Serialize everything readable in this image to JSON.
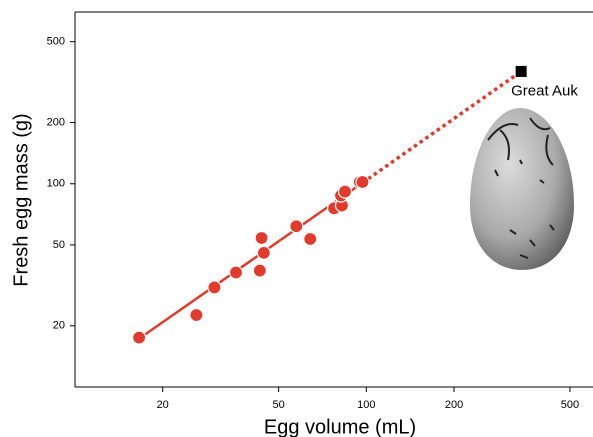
{
  "chart_data": {
    "type": "scatter",
    "x_label": "Egg volume (mL)",
    "y_label": "Fresh egg mass (g)",
    "log_x": true,
    "log_y": true,
    "xlim": [
      10,
      600
    ],
    "ylim": [
      10,
      700
    ],
    "xticks": [
      20,
      50,
      100,
      200,
      500
    ],
    "yticks": [
      20,
      50,
      100,
      200,
      500
    ],
    "color": "#e23b2e",
    "x": [
      16.6,
      26.1,
      30.1,
      35.7,
      43.1,
      43.7,
      44.5,
      57.5,
      64.2,
      77.5,
      82.5,
      81.9,
      84.5,
      95,
      97
    ],
    "y": [
      17.5,
      22.6,
      30.9,
      36.6,
      37.4,
      54.1,
      45.7,
      61.8,
      53.5,
      75.7,
      78.2,
      87.5,
      91.5,
      102,
      102
    ],
    "fit_line": {
      "x": [
        16.6,
        97,
        340
      ],
      "y": [
        17.3,
        101,
        357
      ]
    },
    "highlight": {
      "label": "Great Auk",
      "x": 340,
      "y": 357,
      "color": "#000000"
    }
  }
}
